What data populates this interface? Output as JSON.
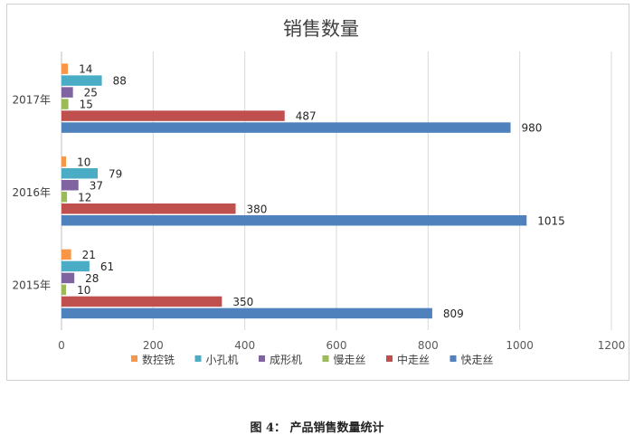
{
  "chart_data": {
    "type": "bar",
    "orientation": "horizontal",
    "title": "销售数量",
    "categories": [
      "2015年",
      "2016年",
      "2017年"
    ],
    "series": [
      {
        "name": "数控铣",
        "color": "#f79646",
        "values": [
          21,
          10,
          14
        ]
      },
      {
        "name": "小孔机",
        "color": "#4bacc6",
        "values": [
          61,
          79,
          88
        ]
      },
      {
        "name": "成形机",
        "color": "#8064a2",
        "values": [
          28,
          37,
          25
        ]
      },
      {
        "name": "慢走丝",
        "color": "#9bbb59",
        "values": [
          10,
          12,
          15
        ]
      },
      {
        "name": "中走丝",
        "color": "#c0504d",
        "values": [
          350,
          380,
          487
        ]
      },
      {
        "name": "快走丝",
        "color": "#4f81bd",
        "values": [
          809,
          1015,
          980
        ]
      }
    ],
    "xlim": [
      0,
      1200
    ],
    "xticks": [
      0,
      200,
      400,
      600,
      800,
      1000,
      1200
    ],
    "grid": true,
    "legend_position": "bottom"
  },
  "caption": "图 4： 产品销售数量统计"
}
